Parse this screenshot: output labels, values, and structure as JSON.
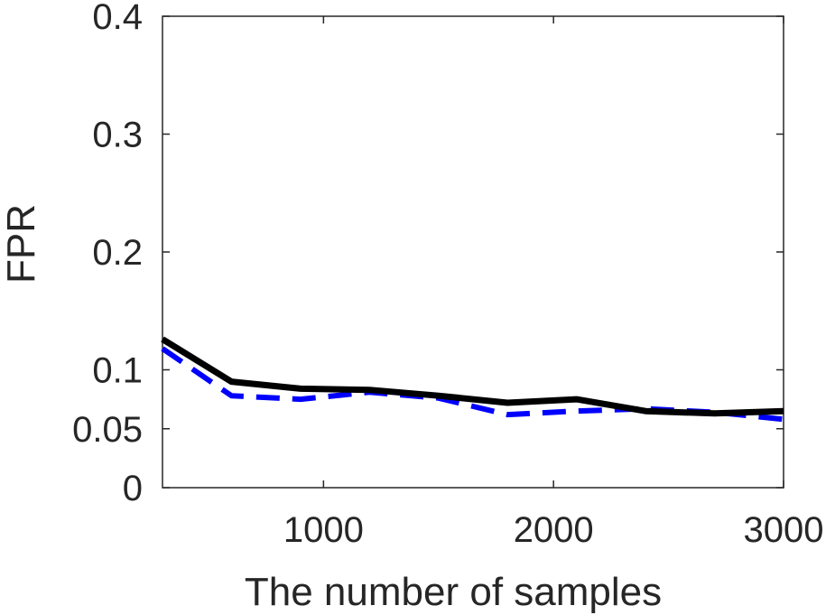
{
  "chart_data": {
    "type": "line",
    "title": "",
    "xlabel": "The number of samples",
    "ylabel": "FPR",
    "xlim": [
      300,
      3000
    ],
    "ylim": [
      0,
      0.4
    ],
    "xticks": [
      1000,
      2000,
      3000
    ],
    "xtick_labels": [
      "1000",
      "2000",
      "3000"
    ],
    "yticks": [
      0,
      0.05,
      0.1,
      0.2,
      0.3,
      0.4
    ],
    "ytick_labels": [
      "0",
      "0.05",
      "0.1",
      "0.2",
      "0.3",
      "0.4"
    ],
    "grid": false,
    "legend": "none",
    "series": [
      {
        "style": "solid",
        "color": "#000000",
        "x": [
          300,
          600,
          900,
          1200,
          1500,
          1800,
          2100,
          2400,
          2700,
          3000
        ],
        "y": [
          0.126,
          0.09,
          0.084,
          0.083,
          0.078,
          0.072,
          0.075,
          0.065,
          0.063,
          0.065
        ]
      },
      {
        "style": "dashed",
        "color": "#0000ff",
        "x": [
          300,
          600,
          900,
          1200,
          1500,
          1800,
          2100,
          2400,
          2700,
          3000
        ],
        "y": [
          0.118,
          0.078,
          0.075,
          0.081,
          0.076,
          0.062,
          0.065,
          0.067,
          0.064,
          0.058
        ]
      }
    ]
  }
}
